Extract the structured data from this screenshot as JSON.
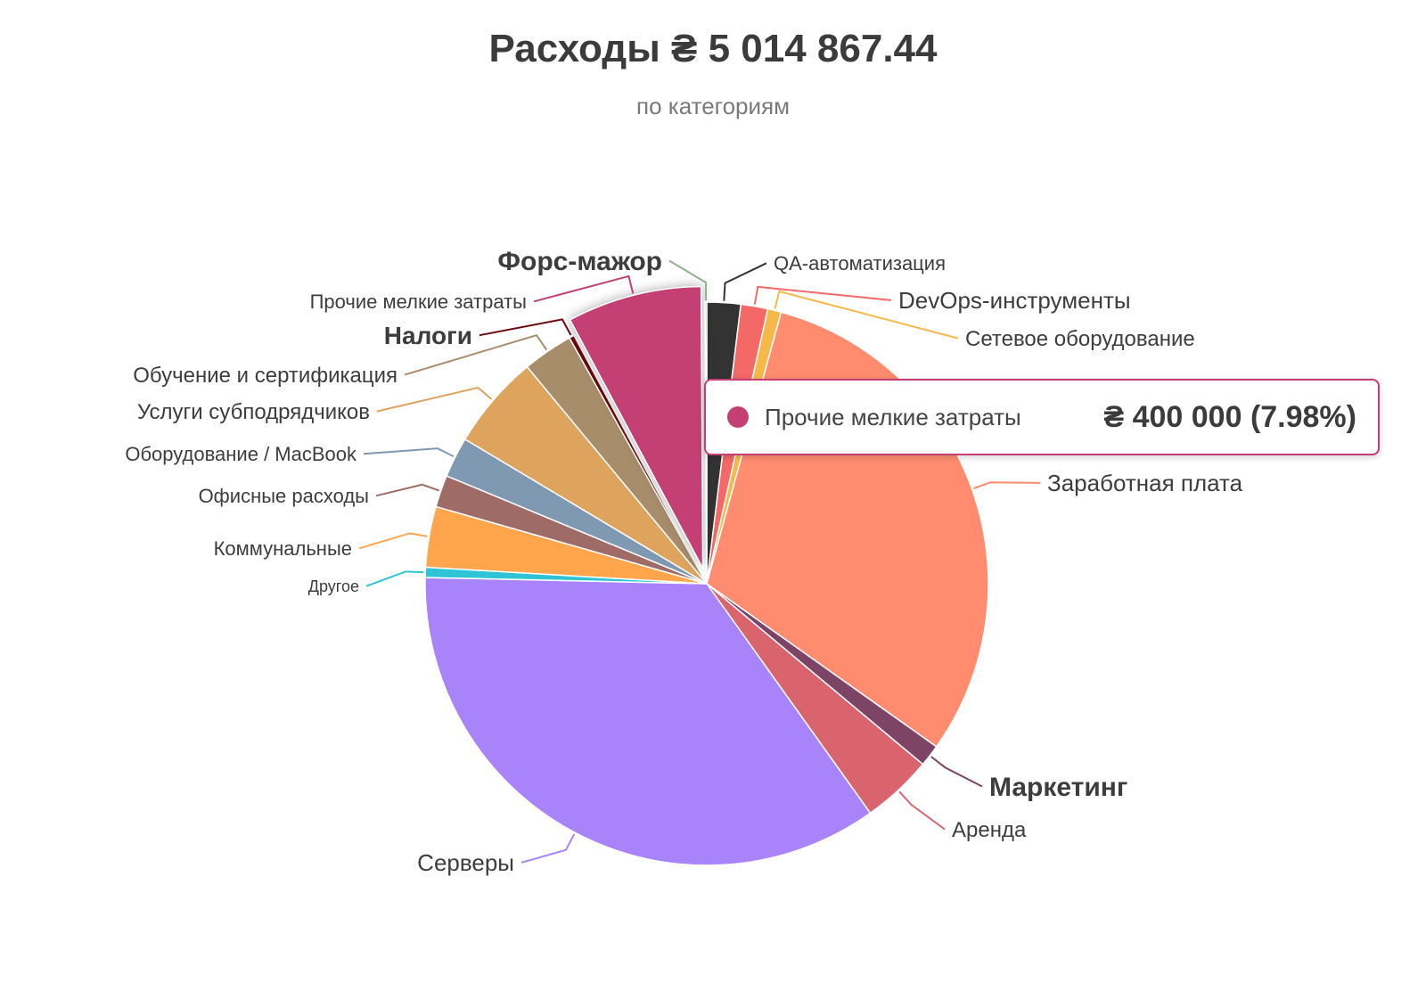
{
  "chart_data": {
    "type": "pie",
    "title": "Расходы ₴ 5 014 867.44",
    "subtitle": "по категориям",
    "slices": [
      {
        "label": "QA-автоматизация",
        "percent": 2.0,
        "color": "#333333"
      },
      {
        "label": "DevOps-инструменты",
        "percent": 1.6,
        "color": "#f46868"
      },
      {
        "label": "Сетевое оборудование",
        "percent": 0.8,
        "color": "#f5b94a"
      },
      {
        "label": "Заработная плата",
        "percent": 31.6,
        "color": "#ff8c6e"
      },
      {
        "label": "Маркетинг",
        "percent": 1.3,
        "color": "#7d4466"
      },
      {
        "label": "Аренда",
        "percent": 4.2,
        "color": "#d9646e"
      },
      {
        "label": "Серверы",
        "percent": 36.4,
        "color": "#a883fa"
      },
      {
        "label": "Другое",
        "percent": 0.6,
        "color": "#2ec4d6"
      },
      {
        "label": "Коммунальные",
        "percent": 3.6,
        "color": "#ffa64d"
      },
      {
        "label": "Офисные расходы",
        "percent": 1.9,
        "color": "#9e6b66"
      },
      {
        "label": "Оборудование / MacBook",
        "percent": 2.4,
        "color": "#7f99b3"
      },
      {
        "label": "Услуги субподрядчиков",
        "percent": 5.6,
        "color": "#dea35c"
      },
      {
        "label": "Обучение и сертификация",
        "percent": 3.0,
        "color": "#a88d6b"
      },
      {
        "label": "Налоги",
        "percent": 0.3,
        "color": "#6b0a10"
      },
      {
        "label": "Прочие мелкие затраты",
        "percent": 7.98,
        "color": "#c43f73",
        "exploded": true
      },
      {
        "label": "Форс-мажор",
        "percent": 0.1,
        "color": "#8fb38a"
      }
    ],
    "emphasized_labels": [
      "Форс-мажор",
      "Налоги",
      "Маркетинг"
    ]
  },
  "tooltip": {
    "name": "Прочие мелкие затраты",
    "value": "₴ 400 000 (7.98%)",
    "color": "#c43f73"
  }
}
